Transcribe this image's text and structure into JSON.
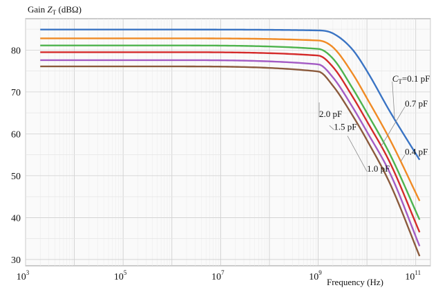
{
  "chart_data": {
    "type": "line",
    "title": "",
    "ylabel": {
      "prefix": "Gain ",
      "var": "Z",
      "sub": "T",
      "suffix": " (dBΩ)"
    },
    "xlabel": "Frequency (Hz)",
    "x_scale": "log",
    "xlim": [
      1000,
      200000000000
    ],
    "ylim": [
      28.5,
      87.5
    ],
    "x_ticks": [
      {
        "value": 1000,
        "base": "10",
        "exp": "3"
      },
      {
        "value": 100000,
        "base": "10",
        "exp": "5"
      },
      {
        "value": 10000000,
        "base": "10",
        "exp": "7"
      },
      {
        "value": 1000000000,
        "base": "10",
        "exp": "9"
      },
      {
        "value": 100000000000,
        "base": "10",
        "exp": "11"
      }
    ],
    "y_ticks": [
      30,
      40,
      50,
      60,
      70,
      80
    ],
    "grid": true,
    "series": [
      {
        "name": "0.1 pF",
        "label": {
          "var": "C",
          "sub": "T",
          "text": "=0.1 pF"
        },
        "color": "#3a74c4",
        "x": [
          2000,
          1000000,
          1000000000,
          2000000000,
          5000000000,
          10000000000,
          30000000000,
          120000000000
        ],
        "y": [
          84.9,
          84.9,
          84.7,
          84.0,
          80.2,
          75.0,
          65.2,
          53.8
        ]
      },
      {
        "name": "0.4 pF",
        "label": {
          "text": "0.4 pF"
        },
        "color": "#f08a24",
        "x": [
          2000,
          1000000,
          1000000000,
          2000000000,
          5000000000,
          10000000000,
          30000000000,
          120000000000
        ],
        "y": [
          82.8,
          82.8,
          82.3,
          80.7,
          74.5,
          68.5,
          58.5,
          44.0
        ]
      },
      {
        "name": "0.7 pF",
        "label": {
          "text": "0.7 pF"
        },
        "color": "#4db34d",
        "x": [
          2000,
          1000000,
          1000000000,
          2000000000,
          5000000000,
          10000000000,
          30000000000,
          120000000000
        ],
        "y": [
          81.1,
          81.1,
          80.3,
          78.0,
          71.0,
          65.0,
          55.0,
          39.5
        ]
      },
      {
        "name": "1.0 pF",
        "label": {
          "text": "1.0 pF"
        },
        "color": "#d42a2a",
        "x": [
          2000,
          1000000,
          1000000000,
          2000000000,
          5000000000,
          10000000000,
          30000000000,
          120000000000
        ],
        "y": [
          79.5,
          79.5,
          78.7,
          76.0,
          69.0,
          63.0,
          53.0,
          36.5
        ]
      },
      {
        "name": "1.5 pF",
        "label": {
          "text": "1.5 pF"
        },
        "color": "#a35bc4",
        "x": [
          2000,
          1000000,
          1000000000,
          2000000000,
          5000000000,
          10000000000,
          30000000000,
          120000000000
        ],
        "y": [
          77.6,
          77.6,
          76.6,
          73.5,
          66.5,
          60.5,
          50.5,
          33.2
        ]
      },
      {
        "name": "2.0 pF",
        "label": {
          "text": "2.0 pF"
        },
        "color": "#8b5a3c",
        "x": [
          2000,
          1000000,
          1000000000,
          2000000000,
          5000000000,
          10000000000,
          30000000000,
          120000000000
        ],
        "y": [
          76.1,
          76.1,
          74.9,
          71.5,
          64.5,
          58.5,
          48.0,
          30.8
        ]
      }
    ],
    "annotations": [
      {
        "series": "0.1 pF",
        "anchor": [
          33000000000,
          72.5
        ],
        "point": [
          37000000000,
          63.5
        ]
      },
      {
        "series": "0.4 pF",
        "anchor": [
          60000000000,
          55.0
        ],
        "point": [
          50000000000,
          53.5
        ]
      },
      {
        "series": "0.7 pF",
        "anchor": [
          60000000000,
          66.5
        ],
        "point": [
          19000000000,
          56.8
        ]
      },
      {
        "series": "1.0 pF",
        "anchor": [
          10000000000,
          51.0
        ],
        "point": [
          4000000000,
          59.5
        ]
      },
      {
        "series": "1.5 pF",
        "anchor": [
          2100000000,
          61.0
        ],
        "point": [
          1700000000,
          62.0
        ]
      },
      {
        "series": "2.0 pF",
        "anchor": [
          1050000000,
          64.0
        ],
        "point": [
          1050000000,
          67.5
        ]
      }
    ]
  }
}
